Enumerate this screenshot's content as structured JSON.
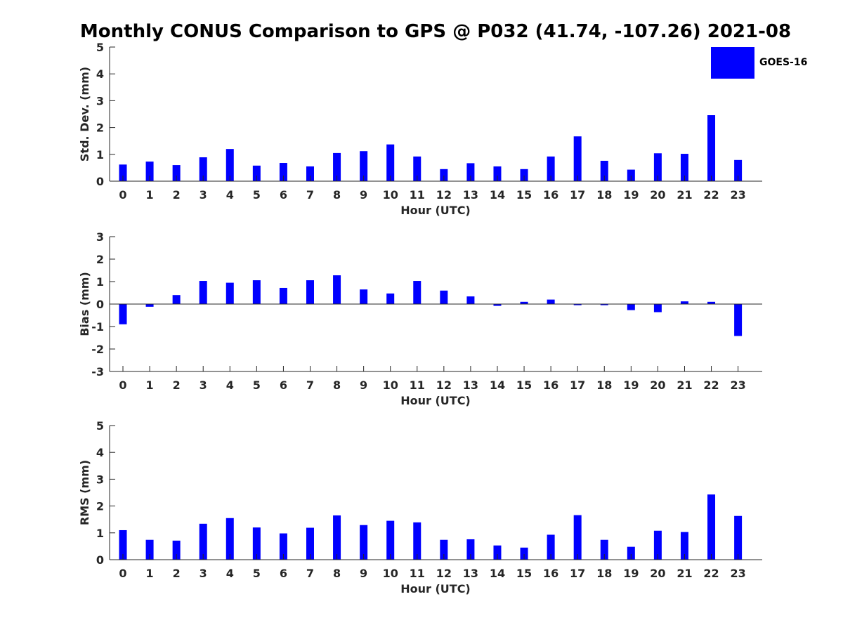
{
  "title": "Monthly CONUS Comparison to GPS @ P032 (41.74, -107.26) 2021-08",
  "legend": {
    "label": "GOES-16",
    "color": "#0000ff"
  },
  "chart_data": [
    {
      "type": "bar",
      "title": "",
      "xlabel": "Hour (UTC)",
      "ylabel": "Std. Dev. (mm)",
      "categories": [
        "0",
        "1",
        "2",
        "3",
        "4",
        "5",
        "6",
        "7",
        "8",
        "9",
        "10",
        "11",
        "12",
        "13",
        "14",
        "15",
        "16",
        "17",
        "18",
        "19",
        "20",
        "21",
        "22",
        "23"
      ],
      "ylim": [
        0,
        5
      ],
      "yticks": [
        "0",
        "1",
        "2",
        "3",
        "4",
        "5"
      ],
      "series": [
        {
          "name": "GOES-16",
          "values": [
            0.62,
            0.73,
            0.6,
            0.89,
            1.2,
            0.58,
            0.68,
            0.55,
            1.05,
            1.12,
            1.37,
            0.92,
            0.45,
            0.67,
            0.55,
            0.45,
            0.92,
            1.67,
            0.76,
            0.43,
            1.04,
            1.02,
            2.46,
            0.79
          ]
        }
      ]
    },
    {
      "type": "bar",
      "title": "",
      "xlabel": "Hour (UTC)",
      "ylabel": "Bias (mm)",
      "categories": [
        "0",
        "1",
        "2",
        "3",
        "4",
        "5",
        "6",
        "7",
        "8",
        "9",
        "10",
        "11",
        "12",
        "13",
        "14",
        "15",
        "16",
        "17",
        "18",
        "19",
        "20",
        "21",
        "22",
        "23"
      ],
      "ylim": [
        -3,
        3
      ],
      "yticks": [
        "-3",
        "-2",
        "-1",
        "0",
        "1",
        "2",
        "3"
      ],
      "series": [
        {
          "name": "GOES-16",
          "values": [
            -0.9,
            -0.12,
            0.4,
            1.03,
            0.95,
            1.06,
            0.72,
            1.06,
            1.28,
            0.65,
            0.47,
            1.03,
            0.6,
            0.34,
            -0.08,
            0.1,
            0.2,
            -0.05,
            -0.05,
            -0.27,
            -0.36,
            0.12,
            0.1,
            -1.42
          ]
        }
      ]
    },
    {
      "type": "bar",
      "title": "",
      "xlabel": "Hour (UTC)",
      "ylabel": "RMS (mm)",
      "categories": [
        "0",
        "1",
        "2",
        "3",
        "4",
        "5",
        "6",
        "7",
        "8",
        "9",
        "10",
        "11",
        "12",
        "13",
        "14",
        "15",
        "16",
        "17",
        "18",
        "19",
        "20",
        "21",
        "22",
        "23"
      ],
      "ylim": [
        0,
        5
      ],
      "yticks": [
        "0",
        "1",
        "2",
        "3",
        "4",
        "5"
      ],
      "series": [
        {
          "name": "GOES-16",
          "values": [
            1.1,
            0.74,
            0.71,
            1.34,
            1.55,
            1.2,
            0.98,
            1.19,
            1.65,
            1.29,
            1.45,
            1.39,
            0.74,
            0.76,
            0.53,
            0.45,
            0.93,
            1.66,
            0.74,
            0.48,
            1.08,
            1.03,
            2.43,
            1.63
          ]
        }
      ]
    }
  ]
}
